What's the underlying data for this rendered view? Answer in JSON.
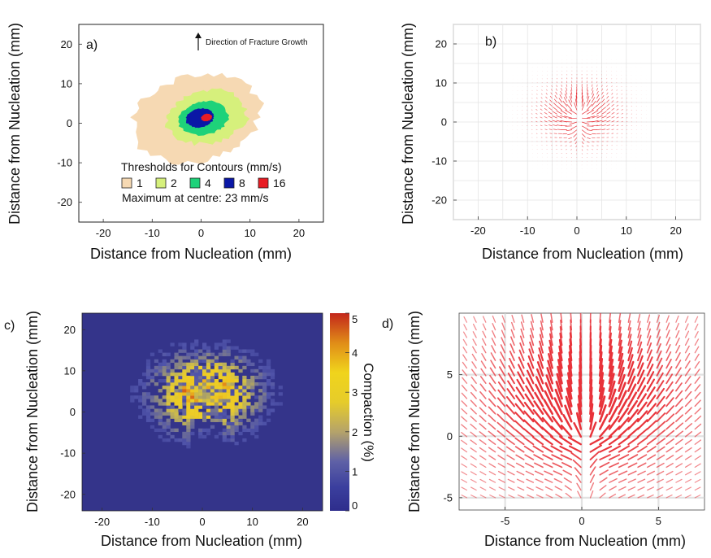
{
  "chart_data": [
    {
      "panel": "a)",
      "type": "contour",
      "xlabel": "Distance from Nucleation (mm)",
      "ylabel": "Distance from Nucleation (mm)",
      "xlim": [
        -25,
        25
      ],
      "ylim": [
        -25,
        25
      ],
      "xticks": [
        -20,
        -10,
        0,
        10,
        20
      ],
      "yticks": [
        -20,
        -10,
        0,
        10,
        20
      ],
      "annotation": "Direction of Fracture Growth",
      "legend_title": "Thresholds for Contours (mm/s)",
      "max_note": "Maximum at centre: 23 mm/s",
      "levels": [
        {
          "value": 1,
          "label": "1",
          "color": "#f6d9b3",
          "r": [
            -14,
            9,
            12,
            6,
            10,
            12,
            13,
            7,
            11,
            10,
            12
          ]
        },
        {
          "value": 2,
          "label": "2",
          "color": "#d6f07c",
          "r": [
            8,
            6,
            8,
            8,
            6,
            8,
            7,
            6,
            7,
            8,
            7
          ]
        },
        {
          "value": 4,
          "label": "4",
          "color": "#1ed27a",
          "r": [
            5.5,
            5,
            5,
            4,
            5,
            5.5,
            5,
            5,
            4.5
          ]
        },
        {
          "value": 8,
          "label": "8",
          "color": "#0a17a6",
          "r": [
            3,
            2.6,
            2.2,
            2.4,
            3,
            2.6,
            2.8
          ]
        },
        {
          "value": 16,
          "label": "16",
          "color": "#e81c24",
          "r": [
            1.2,
            1.0,
            1.1,
            0.9,
            1.2
          ]
        }
      ]
    },
    {
      "panel": "b)",
      "type": "quiver",
      "xlabel": "Distance from Nucleation (mm)",
      "ylabel": "Distance from Nucleation (mm)",
      "xlim": [
        -25,
        25
      ],
      "ylim": [
        -25,
        25
      ],
      "xticks": [
        -20,
        -10,
        0,
        10,
        20
      ],
      "yticks": [
        -20,
        -10,
        0,
        10,
        20
      ],
      "color": "#e8333a"
    },
    {
      "panel": "c)",
      "type": "heatmap",
      "xlabel": "Distance from Nucleation (mm)",
      "ylabel": "Distance from Nucleation (mm)",
      "xlim": [
        -24,
        24
      ],
      "ylim": [
        -24,
        24
      ],
      "xticks": [
        -20,
        -10,
        0,
        10,
        20
      ],
      "yticks": [
        -20,
        -10,
        0,
        10,
        20
      ],
      "colorbar_label": "Compaction (%)",
      "colorbar_range": [
        0,
        5
      ],
      "colorbar_ticks": [
        0,
        1,
        2,
        3,
        4,
        5
      ],
      "hotspots": [
        {
          "x": -2,
          "y": 3,
          "value": 4.5
        },
        {
          "x": 0.5,
          "y": 6,
          "value": 4.2
        },
        {
          "x": 2.5,
          "y": 3,
          "value": 4.6
        },
        {
          "x": -4,
          "y": 5,
          "value": 3.5
        },
        {
          "x": 4.5,
          "y": 6,
          "value": 3.4
        }
      ]
    },
    {
      "panel": "d)",
      "type": "quiver",
      "xlabel": "Distance from Nucleation (mm)",
      "ylabel": "Distance from Nucleation (mm)",
      "xlim": [
        -8,
        8
      ],
      "ylim": [
        -6,
        10
      ],
      "xticks": [
        -5,
        0,
        5
      ],
      "yticks": [
        -5,
        0,
        5
      ],
      "color": "#e8333a"
    }
  ]
}
